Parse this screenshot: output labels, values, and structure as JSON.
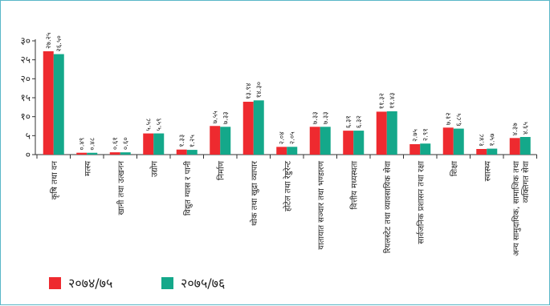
{
  "chart_data": {
    "type": "bar",
    "title": "",
    "xlabel": "",
    "ylabel": "",
    "ylim": [
      0,
      30
    ],
    "yticks": [
      0,
      5,
      10,
      15,
      20,
      25,
      30
    ],
    "ytick_labels": [
      "०",
      "५",
      "१०",
      "१५",
      "२०",
      "२५",
      "३०"
    ],
    "grid": false,
    "legend_position": "bottom-left",
    "categories": [
      "कृषि तथा वन",
      "मत्स्य",
      "खानी तथा उत्खनन",
      "उद्योग",
      "विद्युत ग्यास र पानी",
      "निर्माण",
      "थोक तथा खुद्रा व्यापार",
      "होटेल तथा रेष्टुरेन्ट",
      "यातायात सञ्चार तथा भण्डारण",
      "वित्तीय मध्यस्थता",
      "रियलस्टेट तथा व्यावसायिक सेवा",
      "सार्वजनिक प्रशासन तथा रक्षा",
      "शिक्षा",
      "स्वास्थ्य",
      "अन्य सामुदायिक, सामाजिक तथा व्यक्तिगत सेवा"
    ],
    "series": [
      {
        "name": "२०७४/७५",
        "color": "#ee2a2f",
        "values": [
          27.25,
          0.49,
          0.61,
          5.58,
          1.33,
          7.55,
          13.94,
          2.04,
          7.33,
          6.31,
          11.32,
          2.75,
          7.12,
          1.48,
          4.37
        ],
        "labels": [
          "२७.२५",
          "०.४९",
          "०.६१",
          "५.५८",
          "१.३३",
          "७.५५",
          "१३.९४",
          "२.०४",
          "७.३३",
          "६.३१",
          "११.३२",
          "२.७५",
          "७.१२",
          "१.४८",
          "४.३७"
        ]
      },
      {
        "name": "२०७५/७६",
        "color": "#14a88a",
        "values": [
          26.5,
          0.48,
          0.6,
          5.59,
          1.25,
          7.33,
          14.3,
          2.05,
          7.33,
          6.32,
          11.43,
          2.91,
          6.85,
          1.57,
          4.65
        ],
        "labels": [
          "२६.५०",
          "०.४८",
          "०.६०",
          "५.५९",
          "१.२५",
          "७.३३",
          "१४.३०",
          "२.०५",
          "७.३३",
          "६.३२",
          "११.४३",
          "२.९१",
          "६.८५",
          "१.५७",
          "४.६५"
        ]
      }
    ]
  }
}
